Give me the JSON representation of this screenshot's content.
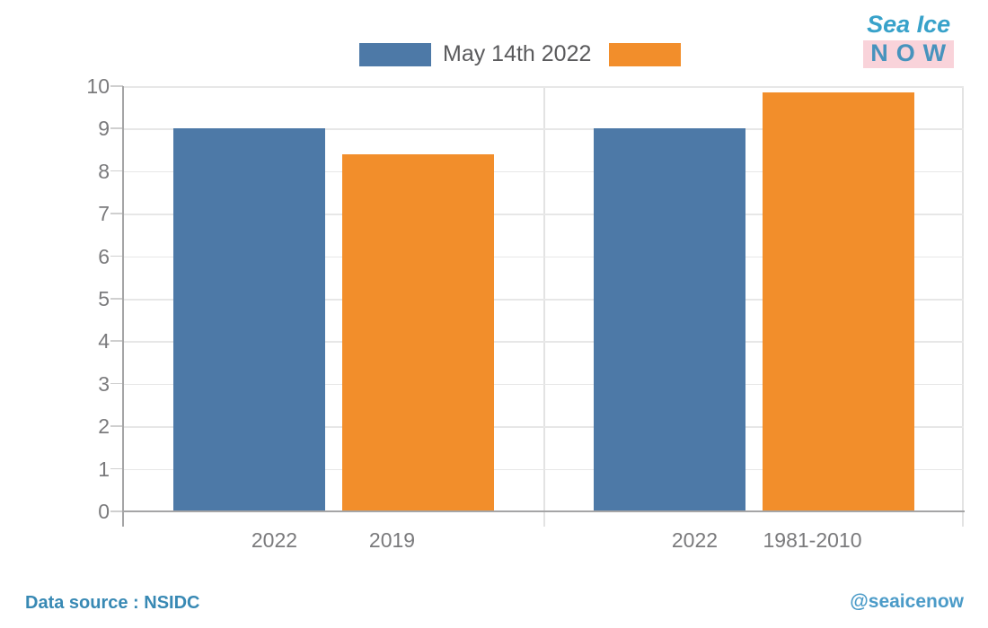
{
  "brand": {
    "line1": "Sea Ice",
    "line2": "NOW"
  },
  "footer": {
    "source": "Data source : NSIDC",
    "handle": "@seaicenow"
  },
  "colors": {
    "blue": "#4D79A7",
    "orange": "#F28E2B",
    "brand_teal": "#38A2CA",
    "brand_pink": "#F9D3DA",
    "axis_text": "#7A7A7C",
    "legend_text": "#5A5A5C"
  },
  "chart_data": {
    "type": "bar",
    "title": "May 14th 2022",
    "legend": {
      "label": "May 14th 2022",
      "swatch_colors": [
        "#4D79A7",
        "#F28E2B"
      ],
      "position": "top-center"
    },
    "xlabel": "",
    "ylabel": "",
    "ylim": [
      0,
      10
    ],
    "yticks": [
      0,
      1,
      2,
      3,
      4,
      5,
      6,
      7,
      8,
      9,
      10
    ],
    "grid": true,
    "panels": [
      {
        "name": "left",
        "categories": [
          "2022",
          "2019"
        ],
        "values": [
          9.0,
          8.4
        ],
        "bar_colors": [
          "#4D79A7",
          "#F28E2B"
        ]
      },
      {
        "name": "right",
        "categories": [
          "2022",
          "1981-2010"
        ],
        "values": [
          9.0,
          9.85
        ],
        "bar_colors": [
          "#4D79A7",
          "#F28E2B"
        ]
      }
    ]
  }
}
